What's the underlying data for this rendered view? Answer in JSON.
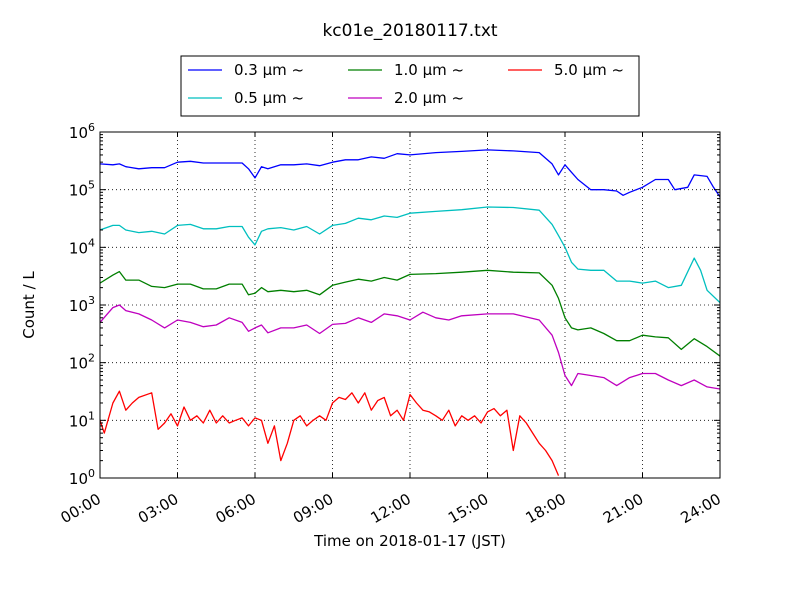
{
  "chart_data": {
    "type": "line",
    "title": "kc01e_20180117.txt",
    "xlabel": "Time on 2018-01-17 (JST)",
    "ylabel": "Count / L",
    "y_scale": "log",
    "xlim": [
      "00:00",
      "24:00"
    ],
    "ylim": [
      1,
      1000000
    ],
    "grid": true,
    "legend_position": "top, above plot",
    "x_ticks": [
      "00:00",
      "03:00",
      "06:00",
      "09:00",
      "12:00",
      "15:00",
      "18:00",
      "21:00",
      "24:00"
    ],
    "y_ticks": [
      {
        "value": 1,
        "mantissa": "10",
        "exp": "0"
      },
      {
        "value": 10,
        "mantissa": "10",
        "exp": "1"
      },
      {
        "value": 100,
        "mantissa": "10",
        "exp": "2"
      },
      {
        "value": 1000,
        "mantissa": "10",
        "exp": "3"
      },
      {
        "value": 10000,
        "mantissa": "10",
        "exp": "4"
      },
      {
        "value": 100000,
        "mantissa": "10",
        "exp": "5"
      },
      {
        "value": 1000000,
        "mantissa": "10",
        "exp": "6"
      }
    ],
    "series": [
      {
        "name": "0.3 μm ~",
        "color": "#0000ff",
        "points": [
          [
            "00:00",
            280000
          ],
          [
            "00:30",
            270000
          ],
          [
            "00:45",
            280000
          ],
          [
            "01:00",
            250000
          ],
          [
            "01:30",
            230000
          ],
          [
            "02:00",
            240000
          ],
          [
            "02:30",
            240000
          ],
          [
            "03:00",
            300000
          ],
          [
            "03:30",
            310000
          ],
          [
            "04:00",
            290000
          ],
          [
            "04:30",
            290000
          ],
          [
            "05:00",
            290000
          ],
          [
            "05:30",
            290000
          ],
          [
            "05:45",
            230000
          ],
          [
            "06:00",
            160000
          ],
          [
            "06:15",
            250000
          ],
          [
            "06:30",
            230000
          ],
          [
            "07:00",
            270000
          ],
          [
            "07:30",
            270000
          ],
          [
            "08:00",
            280000
          ],
          [
            "08:30",
            260000
          ],
          [
            "09:00",
            300000
          ],
          [
            "09:30",
            330000
          ],
          [
            "10:00",
            330000
          ],
          [
            "10:30",
            370000
          ],
          [
            "11:00",
            350000
          ],
          [
            "11:30",
            420000
          ],
          [
            "12:00",
            400000
          ],
          [
            "13:00",
            440000
          ],
          [
            "14:00",
            460000
          ],
          [
            "15:00",
            490000
          ],
          [
            "16:00",
            470000
          ],
          [
            "17:00",
            440000
          ],
          [
            "17:30",
            280000
          ],
          [
            "17:45",
            180000
          ],
          [
            "18:00",
            270000
          ],
          [
            "18:15",
            200000
          ],
          [
            "18:30",
            150000
          ],
          [
            "19:00",
            100000
          ],
          [
            "19:30",
            100000
          ],
          [
            "20:00",
            95000
          ],
          [
            "20:15",
            80000
          ],
          [
            "20:30",
            90000
          ],
          [
            "21:00",
            110000
          ],
          [
            "21:30",
            150000
          ],
          [
            "22:00",
            150000
          ],
          [
            "22:15",
            100000
          ],
          [
            "22:45",
            110000
          ],
          [
            "23:00",
            180000
          ],
          [
            "23:30",
            170000
          ],
          [
            "23:45",
            110000
          ],
          [
            "24:00",
            75000
          ]
        ]
      },
      {
        "name": "0.5 μm ~",
        "color": "#00bfbf",
        "points": [
          [
            "00:00",
            20000
          ],
          [
            "00:30",
            24000
          ],
          [
            "00:45",
            24000
          ],
          [
            "01:00",
            20000
          ],
          [
            "01:30",
            18000
          ],
          [
            "02:00",
            19000
          ],
          [
            "02:30",
            17000
          ],
          [
            "03:00",
            24000
          ],
          [
            "03:30",
            25000
          ],
          [
            "04:00",
            21000
          ],
          [
            "04:30",
            21000
          ],
          [
            "05:00",
            23000
          ],
          [
            "05:30",
            23000
          ],
          [
            "05:45",
            15000
          ],
          [
            "06:00",
            11000
          ],
          [
            "06:15",
            19000
          ],
          [
            "06:30",
            21000
          ],
          [
            "07:00",
            22000
          ],
          [
            "07:30",
            20000
          ],
          [
            "08:00",
            23000
          ],
          [
            "08:30",
            17000
          ],
          [
            "09:00",
            24000
          ],
          [
            "09:30",
            26000
          ],
          [
            "10:00",
            32000
          ],
          [
            "10:30",
            30000
          ],
          [
            "11:00",
            35000
          ],
          [
            "11:30",
            33000
          ],
          [
            "12:00",
            39000
          ],
          [
            "13:00",
            42000
          ],
          [
            "14:00",
            45000
          ],
          [
            "15:00",
            50000
          ],
          [
            "16:00",
            49000
          ],
          [
            "17:00",
            44000
          ],
          [
            "17:30",
            25000
          ],
          [
            "17:45",
            16000
          ],
          [
            "18:00",
            10000
          ],
          [
            "18:15",
            5500
          ],
          [
            "18:30",
            4200
          ],
          [
            "19:00",
            4000
          ],
          [
            "19:30",
            4000
          ],
          [
            "20:00",
            2600
          ],
          [
            "20:30",
            2600
          ],
          [
            "21:00",
            2400
          ],
          [
            "21:30",
            2600
          ],
          [
            "22:00",
            2000
          ],
          [
            "22:30",
            2200
          ],
          [
            "23:00",
            6500
          ],
          [
            "23:15",
            4000
          ],
          [
            "23:30",
            1800
          ],
          [
            "24:00",
            1100
          ]
        ]
      },
      {
        "name": "1.0 μm ~",
        "color": "#007f00",
        "points": [
          [
            "00:00",
            2400
          ],
          [
            "00:30",
            3300
          ],
          [
            "00:45",
            3800
          ],
          [
            "01:00",
            2700
          ],
          [
            "01:30",
            2700
          ],
          [
            "02:00",
            2100
          ],
          [
            "02:30",
            2000
          ],
          [
            "03:00",
            2300
          ],
          [
            "03:30",
            2300
          ],
          [
            "04:00",
            1900
          ],
          [
            "04:30",
            1900
          ],
          [
            "05:00",
            2300
          ],
          [
            "05:30",
            2300
          ],
          [
            "05:45",
            1500
          ],
          [
            "06:00",
            1600
          ],
          [
            "06:15",
            2000
          ],
          [
            "06:30",
            1700
          ],
          [
            "07:00",
            1800
          ],
          [
            "07:30",
            1700
          ],
          [
            "08:00",
            1800
          ],
          [
            "08:30",
            1500
          ],
          [
            "09:00",
            2200
          ],
          [
            "09:30",
            2500
          ],
          [
            "10:00",
            2800
          ],
          [
            "10:30",
            2600
          ],
          [
            "11:00",
            3000
          ],
          [
            "11:30",
            2700
          ],
          [
            "12:00",
            3400
          ],
          [
            "13:00",
            3500
          ],
          [
            "14:00",
            3700
          ],
          [
            "15:00",
            4000
          ],
          [
            "16:00",
            3700
          ],
          [
            "17:00",
            3600
          ],
          [
            "17:30",
            2200
          ],
          [
            "17:45",
            1300
          ],
          [
            "18:00",
            600
          ],
          [
            "18:15",
            400
          ],
          [
            "18:30",
            370
          ],
          [
            "19:00",
            400
          ],
          [
            "19:30",
            320
          ],
          [
            "20:00",
            240
          ],
          [
            "20:30",
            240
          ],
          [
            "21:00",
            300
          ],
          [
            "21:30",
            280
          ],
          [
            "22:00",
            270
          ],
          [
            "22:30",
            170
          ],
          [
            "23:00",
            260
          ],
          [
            "23:30",
            190
          ],
          [
            "24:00",
            130
          ]
        ]
      },
      {
        "name": "2.0 μm ~",
        "color": "#bf00bf",
        "points": [
          [
            "00:00",
            500
          ],
          [
            "00:30",
            900
          ],
          [
            "00:45",
            1000
          ],
          [
            "01:00",
            800
          ],
          [
            "01:30",
            700
          ],
          [
            "02:00",
            550
          ],
          [
            "02:30",
            400
          ],
          [
            "03:00",
            550
          ],
          [
            "03:30",
            500
          ],
          [
            "04:00",
            420
          ],
          [
            "04:30",
            450
          ],
          [
            "05:00",
            600
          ],
          [
            "05:30",
            500
          ],
          [
            "05:45",
            350
          ],
          [
            "06:00",
            400
          ],
          [
            "06:15",
            450
          ],
          [
            "06:30",
            330
          ],
          [
            "07:00",
            400
          ],
          [
            "07:30",
            400
          ],
          [
            "08:00",
            450
          ],
          [
            "08:30",
            320
          ],
          [
            "09:00",
            460
          ],
          [
            "09:30",
            480
          ],
          [
            "10:00",
            600
          ],
          [
            "10:30",
            500
          ],
          [
            "11:00",
            700
          ],
          [
            "11:30",
            650
          ],
          [
            "12:00",
            550
          ],
          [
            "12:30",
            750
          ],
          [
            "13:00",
            600
          ],
          [
            "13:30",
            550
          ],
          [
            "14:00",
            650
          ],
          [
            "15:00",
            700
          ],
          [
            "16:00",
            700
          ],
          [
            "17:00",
            550
          ],
          [
            "17:30",
            300
          ],
          [
            "17:45",
            150
          ],
          [
            "18:00",
            60
          ],
          [
            "18:15",
            40
          ],
          [
            "18:30",
            65
          ],
          [
            "19:00",
            60
          ],
          [
            "19:30",
            55
          ],
          [
            "20:00",
            40
          ],
          [
            "20:30",
            55
          ],
          [
            "21:00",
            65
          ],
          [
            "21:30",
            65
          ],
          [
            "22:00",
            50
          ],
          [
            "22:30",
            40
          ],
          [
            "23:00",
            50
          ],
          [
            "23:30",
            38
          ],
          [
            "24:00",
            35
          ]
        ]
      },
      {
        "name": "5.0 μm ~",
        "color": "#ff0000",
        "points": [
          [
            "00:00",
            10
          ],
          [
            "00:10",
            6
          ],
          [
            "00:30",
            20
          ],
          [
            "00:45",
            32
          ],
          [
            "01:00",
            15
          ],
          [
            "01:15",
            20
          ],
          [
            "01:30",
            25
          ],
          [
            "02:00",
            30
          ],
          [
            "02:15",
            7
          ],
          [
            "02:30",
            9
          ],
          [
            "02:45",
            13
          ],
          [
            "03:00",
            8
          ],
          [
            "03:15",
            17
          ],
          [
            "03:30",
            10
          ],
          [
            "03:45",
            12
          ],
          [
            "04:00",
            9
          ],
          [
            "04:15",
            15
          ],
          [
            "04:30",
            9
          ],
          [
            "04:45",
            12
          ],
          [
            "05:00",
            9
          ],
          [
            "05:15",
            10
          ],
          [
            "05:30",
            11
          ],
          [
            "05:45",
            8
          ],
          [
            "06:00",
            11
          ],
          [
            "06:15",
            10
          ],
          [
            "06:30",
            4
          ],
          [
            "06:45",
            8
          ],
          [
            "07:00",
            2
          ],
          [
            "07:15",
            4
          ],
          [
            "07:30",
            10
          ],
          [
            "07:45",
            12
          ],
          [
            "08:00",
            8
          ],
          [
            "08:15",
            10
          ],
          [
            "08:30",
            12
          ],
          [
            "08:45",
            10
          ],
          [
            "09:00",
            20
          ],
          [
            "09:15",
            25
          ],
          [
            "09:30",
            23
          ],
          [
            "09:45",
            30
          ],
          [
            "10:00",
            20
          ],
          [
            "10:15",
            30
          ],
          [
            "10:30",
            15
          ],
          [
            "10:45",
            22
          ],
          [
            "11:00",
            25
          ],
          [
            "11:15",
            12
          ],
          [
            "11:30",
            15
          ],
          [
            "11:45",
            10
          ],
          [
            "12:00",
            28
          ],
          [
            "12:15",
            20
          ],
          [
            "12:30",
            15
          ],
          [
            "12:45",
            14
          ],
          [
            "13:00",
            12
          ],
          [
            "13:15",
            10
          ],
          [
            "13:30",
            15
          ],
          [
            "13:45",
            8
          ],
          [
            "14:00",
            12
          ],
          [
            "14:15",
            10
          ],
          [
            "14:30",
            12
          ],
          [
            "14:45",
            9
          ],
          [
            "15:00",
            14
          ],
          [
            "15:15",
            16
          ],
          [
            "15:30",
            12
          ],
          [
            "15:45",
            15
          ],
          [
            "16:00",
            3
          ],
          [
            "16:15",
            12
          ],
          [
            "16:30",
            9
          ],
          [
            "16:45",
            6
          ],
          [
            "17:00",
            4
          ],
          [
            "17:15",
            3
          ],
          [
            "17:30",
            2
          ],
          [
            "17:45",
            1.1
          ]
        ]
      }
    ]
  }
}
